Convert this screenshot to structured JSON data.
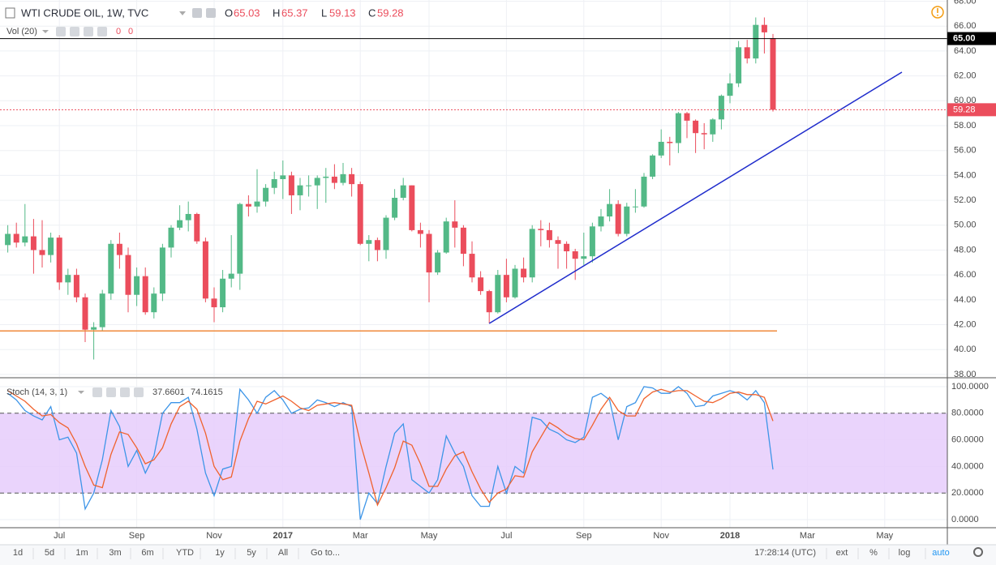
{
  "chart_data": {
    "type": "candlestick",
    "title": "WTI CRUDE OIL, 1W, TVC",
    "ohlc_labels": [
      "O",
      "H",
      "L",
      "C"
    ],
    "candles": [
      [
        48.4,
        50.0,
        47.8,
        49.3
      ],
      [
        49.3,
        50.2,
        48.2,
        48.6
      ],
      [
        48.6,
        51.7,
        48.3,
        49.1
      ],
      [
        49.1,
        50.5,
        46.1,
        48.0
      ],
      [
        48.0,
        50.4,
        46.6,
        47.6
      ],
      [
        47.6,
        49.4,
        47.0,
        49.0
      ],
      [
        49.0,
        49.2,
        44.8,
        45.4
      ],
      [
        45.4,
        46.5,
        44.4,
        46.0
      ],
      [
        46.0,
        46.5,
        43.8,
        44.2
      ],
      [
        44.2,
        44.5,
        40.6,
        41.6
      ],
      [
        41.6,
        42.2,
        39.2,
        41.8
      ],
      [
        41.8,
        44.8,
        41.5,
        44.5
      ],
      [
        44.5,
        48.8,
        44.0,
        48.5
      ],
      [
        48.5,
        49.4,
        46.5,
        47.6
      ],
      [
        47.6,
        48.2,
        43.0,
        44.4
      ],
      [
        44.4,
        46.6,
        43.5,
        45.9
      ],
      [
        45.9,
        46.6,
        42.8,
        43.0
      ],
      [
        43.0,
        45.0,
        42.5,
        44.5
      ],
      [
        44.5,
        48.5,
        43.9,
        48.2
      ],
      [
        48.2,
        50.0,
        47.4,
        49.8
      ],
      [
        49.8,
        51.6,
        49.6,
        50.4
      ],
      [
        50.4,
        51.9,
        49.5,
        50.9
      ],
      [
        50.9,
        51.0,
        48.5,
        48.7
      ],
      [
        48.7,
        49.0,
        43.8,
        44.1
      ],
      [
        44.1,
        45.0,
        42.2,
        43.4
      ],
      [
        43.4,
        46.4,
        43.0,
        45.7
      ],
      [
        45.7,
        49.2,
        45.0,
        46.1
      ],
      [
        46.1,
        51.8,
        44.8,
        51.7
      ],
      [
        51.7,
        52.4,
        50.7,
        51.5
      ],
      [
        51.5,
        54.5,
        51.0,
        51.9
      ],
      [
        51.9,
        53.3,
        51.5,
        53.0
      ],
      [
        53.0,
        54.3,
        52.5,
        53.7
      ],
      [
        53.7,
        55.2,
        52.1,
        54.0
      ],
      [
        54.0,
        54.3,
        50.9,
        52.4
      ],
      [
        52.4,
        53.8,
        51.2,
        53.2
      ],
      [
        53.2,
        54.0,
        52.3,
        53.2
      ],
      [
        53.2,
        54.0,
        51.3,
        53.8
      ],
      [
        53.8,
        54.6,
        51.8,
        53.9
      ],
      [
        53.9,
        54.9,
        52.9,
        53.4
      ],
      [
        53.4,
        55.0,
        53.2,
        54.1
      ],
      [
        54.1,
        54.6,
        52.3,
        53.3
      ],
      [
        53.3,
        53.5,
        48.4,
        48.5
      ],
      [
        48.5,
        49.2,
        47.1,
        48.8
      ],
      [
        48.8,
        49.0,
        47.1,
        48.0
      ],
      [
        48.0,
        50.8,
        47.3,
        50.6
      ],
      [
        50.6,
        52.9,
        50.4,
        52.2
      ],
      [
        52.2,
        53.8,
        52.0,
        53.2
      ],
      [
        53.2,
        53.2,
        49.5,
        49.6
      ],
      [
        49.6,
        50.2,
        48.2,
        49.3
      ],
      [
        49.3,
        49.6,
        43.8,
        46.2
      ],
      [
        46.2,
        48.0,
        46.0,
        47.8
      ],
      [
        47.8,
        50.6,
        47.7,
        50.3
      ],
      [
        50.3,
        52.0,
        48.2,
        49.8
      ],
      [
        49.8,
        50.0,
        46.7,
        47.7
      ],
      [
        47.7,
        48.7,
        45.4,
        45.8
      ],
      [
        45.8,
        46.3,
        44.4,
        44.7
      ],
      [
        44.7,
        44.8,
        42.1,
        43.0
      ],
      [
        43.0,
        46.4,
        42.9,
        46.0
      ],
      [
        46.0,
        47.3,
        43.8,
        44.2
      ],
      [
        44.2,
        46.8,
        44.1,
        46.5
      ],
      [
        46.5,
        47.4,
        45.4,
        45.8
      ],
      [
        45.8,
        50.0,
        45.4,
        49.7
      ],
      [
        49.7,
        50.4,
        48.3,
        49.6
      ],
      [
        49.6,
        50.2,
        48.2,
        48.8
      ],
      [
        48.8,
        49.1,
        46.5,
        48.5
      ],
      [
        48.5,
        48.7,
        46.5,
        47.9
      ],
      [
        47.9,
        48.1,
        45.6,
        47.3
      ],
      [
        47.3,
        49.4,
        46.8,
        47.5
      ],
      [
        47.5,
        50.2,
        47.0,
        49.9
      ],
      [
        49.9,
        51.3,
        49.5,
        50.7
      ],
      [
        50.7,
        52.9,
        50.3,
        51.7
      ],
      [
        51.7,
        52.0,
        49.1,
        49.3
      ],
      [
        49.3,
        51.8,
        49.1,
        51.5
      ],
      [
        51.5,
        52.9,
        51.0,
        51.5
      ],
      [
        51.5,
        54.2,
        51.4,
        53.9
      ],
      [
        53.9,
        55.7,
        53.7,
        55.6
      ],
      [
        55.6,
        57.7,
        55.4,
        56.7
      ],
      [
        56.7,
        57.1,
        54.8,
        56.6
      ],
      [
        56.6,
        59.1,
        55.8,
        59.0
      ],
      [
        59.0,
        59.1,
        57.0,
        58.4
      ],
      [
        58.4,
        58.5,
        55.8,
        57.4
      ],
      [
        57.4,
        58.2,
        56.1,
        57.3
      ],
      [
        57.3,
        58.6,
        56.7,
        58.5
      ],
      [
        58.5,
        60.5,
        57.7,
        60.4
      ],
      [
        60.4,
        62.2,
        59.8,
        61.4
      ],
      [
        61.4,
        64.8,
        61.1,
        64.3
      ],
      [
        64.3,
        64.9,
        63.0,
        63.4
      ],
      [
        63.4,
        66.7,
        63.0,
        66.1
      ],
      [
        66.1,
        66.7,
        63.8,
        65.5
      ],
      [
        65.03,
        65.37,
        59.13,
        59.28
      ]
    ],
    "colors": {
      "up": "#53b987",
      "down": "#eb4d5c"
    },
    "ylim": [
      37.8,
      68.1
    ],
    "yticks": [
      {
        "value": 38,
        "label": "38.00"
      },
      {
        "value": 40,
        "label": "40.00"
      },
      {
        "value": 42,
        "label": "42.00"
      },
      {
        "value": 44,
        "label": "44.00"
      },
      {
        "value": 46,
        "label": "46.00"
      },
      {
        "value": 48,
        "label": "48.00"
      },
      {
        "value": 50,
        "label": "50.00"
      },
      {
        "value": 52,
        "label": "52.00"
      },
      {
        "value": 54,
        "label": "54.00"
      },
      {
        "value": 56,
        "label": "56.00"
      },
      {
        "value": 58,
        "label": "58.00"
      },
      {
        "value": 60,
        "label": "60.00"
      },
      {
        "value": 62,
        "label": "62.00"
      },
      {
        "value": 64,
        "label": "64.00"
      },
      {
        "value": 66,
        "label": "66.00"
      },
      {
        "value": 68,
        "label": "68.00"
      }
    ],
    "grid": true,
    "time_labels": [
      "Jul",
      "Sep",
      "Nov",
      "2017",
      "Mar",
      "May",
      "Jul",
      "Sep",
      "Nov",
      "2018",
      "Mar",
      "May"
    ],
    "level_line": {
      "value": 65,
      "label": "65.00"
    },
    "support_level": 41.5,
    "support_color": "#f08a3c",
    "trend_line": [
      42.1,
      62.3
    ],
    "trend_color": "#1f2ccc",
    "volume": {
      "name": "Vol (20)",
      "values": [
        0,
        0
      ]
    },
    "stochastic": {
      "name": "Stoch (14, 3, 1)",
      "ylim": [
        -6.7,
        106.1
      ],
      "yticks": [
        {
          "value": 0,
          "label": "0.0000"
        },
        {
          "value": 20,
          "label": "20.0000"
        },
        {
          "value": 40,
          "label": "40.0000"
        },
        {
          "value": 60,
          "label": "60.0000"
        },
        {
          "value": 80,
          "label": "80.0000"
        },
        {
          "value": 100,
          "label": "100.0000"
        }
      ],
      "band": [
        20,
        80
      ],
      "band_color": "#e6cdfb",
      "series": [
        {
          "color": "#3d95e8",
          "values": [
            95,
            90,
            82,
            78,
            75,
            85,
            60,
            62,
            50,
            8,
            20,
            45,
            82,
            70,
            40,
            52,
            35,
            48,
            80,
            88,
            88,
            92,
            68,
            35,
            18,
            38,
            40,
            98,
            90,
            80,
            92,
            97,
            90,
            80,
            83,
            84,
            90,
            88,
            85,
            88,
            85,
            0,
            20,
            12,
            40,
            65,
            72,
            30,
            25,
            20,
            30,
            63,
            50,
            40,
            18,
            10,
            10,
            40,
            20,
            40,
            35,
            77,
            75,
            68,
            65,
            60,
            58,
            62,
            92,
            95,
            90,
            60,
            85,
            88,
            100,
            99,
            95,
            95,
            100,
            95,
            85,
            86,
            93,
            95,
            97,
            95,
            90,
            97,
            88,
            37.6601
          ]
        },
        {
          "color": "#f0622d",
          "values": [
            97,
            93,
            89,
            83,
            78,
            79,
            73,
            69,
            57,
            40,
            26,
            24,
            49,
            66,
            64,
            54,
            42,
            45,
            54,
            72,
            85,
            89,
            83,
            65,
            40,
            30,
            32,
            59,
            76,
            89,
            87,
            90,
            93,
            89,
            84,
            82,
            86,
            87,
            88,
            87,
            86,
            58,
            35,
            11,
            24,
            39,
            59,
            56,
            42,
            25,
            25,
            38,
            48,
            51,
            36,
            23,
            13,
            20,
            23,
            33,
            32,
            51,
            62,
            73,
            69,
            64,
            61,
            60,
            71,
            83,
            92,
            82,
            78,
            78,
            91,
            96,
            98,
            96,
            97,
            97,
            93,
            89,
            88,
            91,
            95,
            96,
            94,
            94,
            92,
            74.1615
          ]
        }
      ]
    }
  },
  "toolbar": {
    "ranges": [
      "1d",
      "5d",
      "1m",
      "3m",
      "6m",
      "YTD",
      "1y",
      "5y",
      "All"
    ],
    "goto": "Go to...",
    "clock": "17:28:14 (UTC)",
    "options": [
      "ext",
      "%",
      "log",
      "auto"
    ]
  }
}
